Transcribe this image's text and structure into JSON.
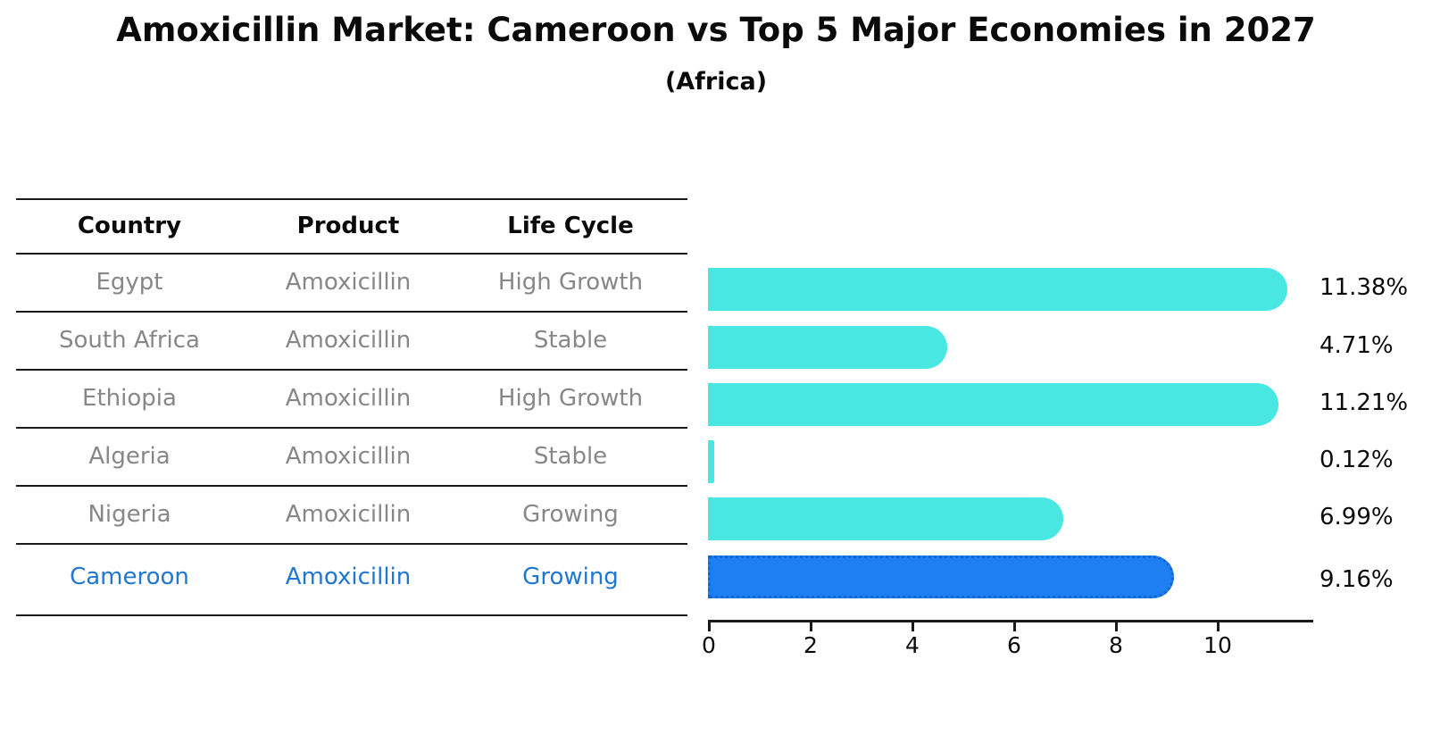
{
  "header": {
    "title": "Amoxicillin Market: Cameroon vs Top 5 Major Economies in 2027",
    "subtitle": "(Africa)"
  },
  "table": {
    "columns": [
      "Country",
      "Product",
      "Life Cycle"
    ],
    "rows": [
      {
        "country": "Egypt",
        "product": "Amoxicillin",
        "life_cycle": "High Growth",
        "highlighted": false
      },
      {
        "country": "South Africa",
        "product": "Amoxicillin",
        "life_cycle": "Stable",
        "highlighted": false
      },
      {
        "country": "Ethiopia",
        "product": "Amoxicillin",
        "life_cycle": "High Growth",
        "highlighted": false
      },
      {
        "country": "Algeria",
        "product": "Amoxicillin",
        "life_cycle": "Stable",
        "highlighted": false
      },
      {
        "country": "Nigeria",
        "product": "Amoxicillin",
        "life_cycle": "Growing",
        "highlighted": false
      },
      {
        "country": "Cameroon",
        "product": "Amoxicillin",
        "life_cycle": "Growing",
        "highlighted": true
      }
    ]
  },
  "chart_data": {
    "type": "bar",
    "orientation": "horizontal",
    "title": "Amoxicillin Market: Cameroon vs Top 5 Major Economies in 2027",
    "subtitle": "(Africa)",
    "categories": [
      "Egypt",
      "South Africa",
      "Ethiopia",
      "Algeria",
      "Nigeria",
      "Cameroon"
    ],
    "values": [
      11.38,
      4.71,
      11.21,
      0.12,
      6.99,
      9.16
    ],
    "labels": [
      "11.38%",
      "4.71%",
      "11.21%",
      "0.12%",
      "6.99%",
      "9.16%"
    ],
    "xticks": [
      0,
      2,
      4,
      6,
      8,
      10
    ],
    "xlim": [
      0,
      11.88
    ],
    "xlabel": "",
    "ylabel": "",
    "grid": false,
    "legend": false,
    "bar_color": "#48e7e1",
    "highlight_color": "#1e80f0",
    "highlight_border_color": "#1565d2",
    "highlight_index": 5,
    "highlight_text_color": "#1f77d4"
  }
}
